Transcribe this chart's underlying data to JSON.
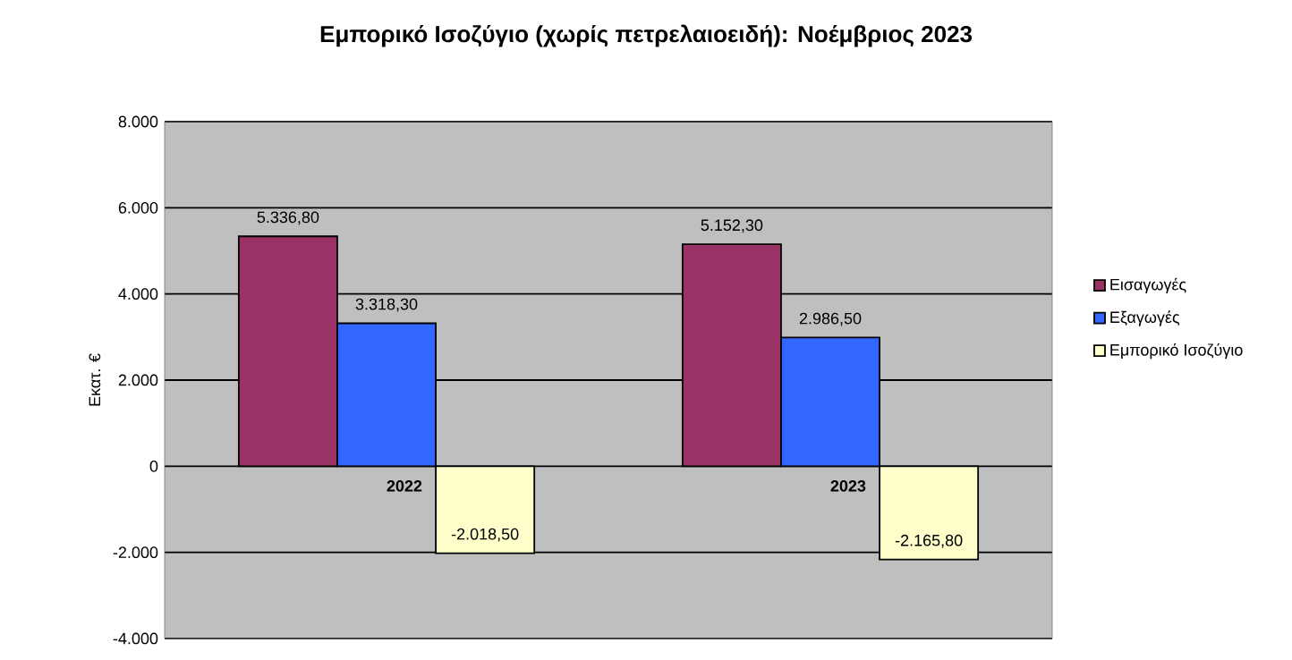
{
  "chart_data": {
    "type": "bar",
    "title": "Εμπορικό Ισοζύγιο (χωρίς πετρελαιοειδή): Νοέμβριος 2023",
    "ylabel": "Εκατ. €",
    "categories": [
      "2022",
      "2023"
    ],
    "series": [
      {
        "name": "Εισαγωγές",
        "color": "#993366",
        "values": [
          5336.8,
          5152.3
        ],
        "value_labels": [
          "5.336,80",
          "5.152,30"
        ]
      },
      {
        "name": "Εξαγωγές",
        "color": "#3366ff",
        "values": [
          3318.3,
          2986.5
        ],
        "value_labels": [
          "3.318,30",
          "2.986,50"
        ]
      },
      {
        "name": "Εμπορικό  Ισοζύγιο",
        "color": "#ffffcc",
        "values": [
          -2018.5,
          -2165.8
        ],
        "value_labels": [
          "-2.018,50",
          "-2.165,80"
        ]
      }
    ],
    "ylim": [
      -4000,
      8000
    ],
    "yticks": [
      {
        "value": -4000,
        "label": "-4.000"
      },
      {
        "value": -2000,
        "label": "-2.000"
      },
      {
        "value": 0,
        "label": "0"
      },
      {
        "value": 2000,
        "label": "2.000"
      },
      {
        "value": 4000,
        "label": "4.000"
      },
      {
        "value": 6000,
        "label": "6.000"
      },
      {
        "value": 8000,
        "label": "8.000"
      }
    ],
    "grid": "y",
    "legend": "right"
  }
}
